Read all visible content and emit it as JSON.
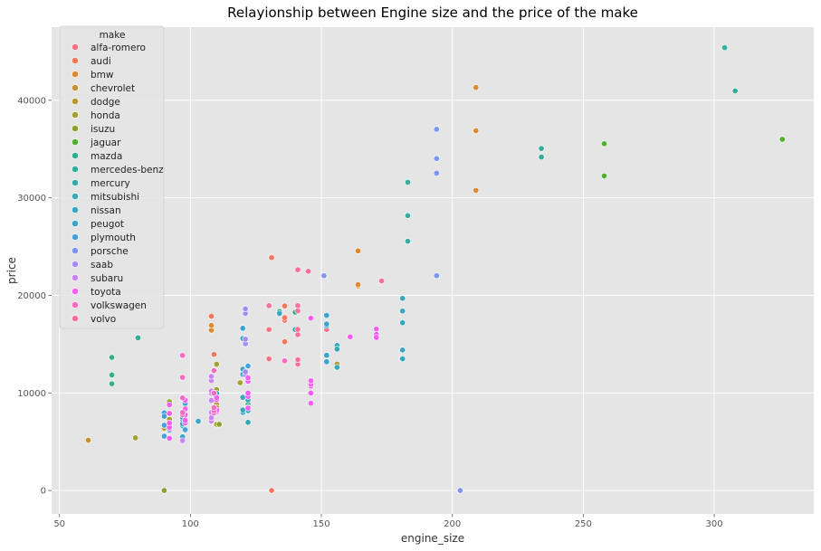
{
  "chart_data": {
    "type": "scatter",
    "title": "Relayionship between Engine size and the price of the make",
    "xlabel": "engine_size",
    "ylabel": "price",
    "xlim": [
      47,
      338
    ],
    "ylim": [
      -2400,
      47500
    ],
    "xticks": [
      50,
      100,
      150,
      200,
      250,
      300
    ],
    "yticks": [
      0,
      10000,
      20000,
      30000,
      40000
    ],
    "grid": true,
    "legend": {
      "title": "make",
      "placement": "top-left"
    },
    "series": [
      {
        "name": "alfa-romero",
        "color": "#f77189",
        "points": [
          [
            130,
            13495
          ],
          [
            130,
            16500
          ],
          [
            152,
            16500
          ]
        ]
      },
      {
        "name": "audi",
        "color": "#f3765e",
        "points": [
          [
            109,
            13950
          ],
          [
            136,
            17450
          ],
          [
            136,
            15250
          ],
          [
            136,
            17710
          ],
          [
            136,
            18920
          ],
          [
            131,
            23875
          ],
          [
            131,
            0
          ],
          [
            108,
            17859
          ]
        ]
      },
      {
        "name": "bmw",
        "color": "#dd8a30",
        "points": [
          [
            108,
            16430
          ],
          [
            108,
            16925
          ],
          [
            164,
            20970
          ],
          [
            164,
            21105
          ],
          [
            164,
            24565
          ],
          [
            209,
            30760
          ],
          [
            209,
            41315
          ],
          [
            209,
            36880
          ]
        ]
      },
      {
        "name": "chevrolet",
        "color": "#c69332",
        "points": [
          [
            61,
            5151
          ],
          [
            90,
            6295
          ],
          [
            90,
            6575
          ]
        ]
      },
      {
        "name": "dodge",
        "color": "#b39a31",
        "points": [
          [
            90,
            5572
          ],
          [
            90,
            6377
          ],
          [
            90,
            7957
          ],
          [
            98,
            6229
          ],
          [
            90,
            6692
          ],
          [
            90,
            7609
          ],
          [
            98,
            8558
          ],
          [
            122,
            8921
          ],
          [
            156,
            12964
          ]
        ]
      },
      {
        "name": "honda",
        "color": "#a1a031",
        "points": [
          [
            79,
            5399
          ],
          [
            92,
            6529
          ],
          [
            92,
            7129
          ],
          [
            92,
            7295
          ],
          [
            92,
            7895
          ],
          [
            92,
            9095
          ],
          [
            110,
            8845
          ],
          [
            110,
            10295
          ],
          [
            110,
            12945
          ],
          [
            110,
            10345
          ],
          [
            110,
            6785
          ],
          [
            110,
            8495
          ],
          [
            119,
            11048
          ]
        ]
      },
      {
        "name": "isuzu",
        "color": "#8ca131",
        "points": [
          [
            90,
            0
          ],
          [
            111,
            6785
          ]
        ]
      },
      {
        "name": "jaguar",
        "color": "#50b131",
        "points": [
          [
            258,
            32250
          ],
          [
            258,
            35550
          ],
          [
            326,
            36000
          ]
        ]
      },
      {
        "name": "mazda",
        "color": "#34ae8d",
        "points": [
          [
            70,
            10945
          ],
          [
            70,
            11845
          ],
          [
            70,
            13645
          ],
          [
            80,
            15645
          ],
          [
            122,
            8845
          ],
          [
            122,
            8495
          ],
          [
            140,
            18280
          ],
          [
            134,
            18344
          ]
        ]
      },
      {
        "name": "mercedes-benz",
        "color": "#36ad9e",
        "points": [
          [
            183,
            25552
          ],
          [
            183,
            28248
          ],
          [
            183,
            28176
          ],
          [
            183,
            31600
          ],
          [
            234,
            34184
          ],
          [
            234,
            35056
          ],
          [
            308,
            40960
          ],
          [
            304,
            45400
          ]
        ]
      },
      {
        "name": "mercury",
        "color": "#37abaa",
        "points": [
          [
            140,
            16503
          ]
        ]
      },
      {
        "name": "mitsubishi",
        "color": "#38a9b5",
        "points": [
          [
            92,
            5389
          ],
          [
            92,
            6189
          ],
          [
            92,
            6669
          ],
          [
            98,
            7689
          ],
          [
            110,
            9959
          ],
          [
            122,
            8499
          ],
          [
            156,
            12629
          ],
          [
            156,
            14869
          ],
          [
            156,
            14489
          ],
          [
            122,
            6989
          ],
          [
            122,
            8189
          ],
          [
            122,
            9279
          ],
          [
            122,
            9279
          ]
        ]
      },
      {
        "name": "nissan",
        "color": "#39a7c0",
        "points": [
          [
            97,
            5499
          ],
          [
            103,
            7099
          ],
          [
            97,
            6649
          ],
          [
            97,
            6849
          ],
          [
            97,
            7349
          ],
          [
            97,
            7299
          ],
          [
            97,
            7799
          ],
          [
            97,
            7499
          ],
          [
            120,
            7999
          ],
          [
            120,
            8249
          ],
          [
            181,
            13499
          ],
          [
            181,
            14399
          ],
          [
            181,
            13499
          ],
          [
            181,
            17199
          ],
          [
            181,
            19699
          ],
          [
            181,
            18399
          ],
          [
            120,
            9549
          ],
          [
            120,
            9549
          ]
        ]
      },
      {
        "name": "peugot",
        "color": "#3aa4cb",
        "points": [
          [
            120,
            11900
          ],
          [
            152,
            13200
          ],
          [
            120,
            12440
          ],
          [
            152,
            13860
          ],
          [
            120,
            15580
          ],
          [
            152,
            16900
          ],
          [
            120,
            16695
          ],
          [
            152,
            17075
          ],
          [
            120,
            16630
          ],
          [
            152,
            17950
          ],
          [
            134,
            18150
          ]
        ]
      },
      {
        "name": "plymouth",
        "color": "#47a0dd",
        "points": [
          [
            90,
            5572
          ],
          [
            90,
            7957
          ],
          [
            98,
            6229
          ],
          [
            90,
            6692
          ],
          [
            90,
            7609
          ],
          [
            98,
            8921
          ],
          [
            122,
            12764
          ]
        ]
      },
      {
        "name": "porsche",
        "color": "#7f94f3",
        "points": [
          [
            194,
            22018
          ],
          [
            194,
            32528
          ],
          [
            194,
            34028
          ],
          [
            194,
            37028
          ],
          [
            203,
            0
          ],
          [
            151,
            22018
          ]
        ]
      },
      {
        "name": "saab",
        "color": "#a48cf4",
        "points": [
          [
            121,
            11850
          ],
          [
            121,
            12170
          ],
          [
            121,
            15040
          ],
          [
            121,
            15510
          ],
          [
            121,
            18150
          ],
          [
            121,
            18620
          ]
        ]
      },
      {
        "name": "subaru",
        "color": "#c983f4",
        "points": [
          [
            97,
            5118
          ],
          [
            108,
            7053
          ],
          [
            108,
            7603
          ],
          [
            108,
            7126
          ],
          [
            108,
            7775
          ],
          [
            108,
            9960
          ],
          [
            108,
            9233
          ],
          [
            108,
            11259
          ],
          [
            108,
            7463
          ],
          [
            108,
            10198
          ],
          [
            108,
            8013
          ],
          [
            108,
            11694
          ]
        ]
      },
      {
        "name": "toyota",
        "color": "#f45ef1",
        "points": [
          [
            92,
            5348
          ],
          [
            92,
            6338
          ],
          [
            92,
            6488
          ],
          [
            92,
            6918
          ],
          [
            92,
            7898
          ],
          [
            92,
            8778
          ],
          [
            98,
            6938
          ],
          [
            98,
            7198
          ],
          [
            98,
            7898
          ],
          [
            98,
            7788
          ],
          [
            98,
            7738
          ],
          [
            98,
            8358
          ],
          [
            98,
            9258
          ],
          [
            110,
            8058
          ],
          [
            110,
            8238
          ],
          [
            110,
            9298
          ],
          [
            110,
            9538
          ],
          [
            122,
            8449
          ],
          [
            122,
            9639
          ],
          [
            122,
            9989
          ],
          [
            122,
            11199
          ],
          [
            122,
            11549
          ],
          [
            146,
            17669
          ],
          [
            146,
            8948
          ],
          [
            146,
            10698
          ],
          [
            146,
            9988
          ],
          [
            146,
            10898
          ],
          [
            146,
            11248
          ],
          [
            171,
            16558
          ],
          [
            171,
            15998
          ],
          [
            171,
            15690
          ],
          [
            161,
            15750
          ]
        ]
      },
      {
        "name": "volkswagen",
        "color": "#f56bbf",
        "points": [
          [
            97,
            7775
          ],
          [
            109,
            7975
          ],
          [
            97,
            7995
          ],
          [
            109,
            8195
          ],
          [
            109,
            8495
          ],
          [
            97,
            9495
          ],
          [
            109,
            9995
          ],
          [
            97,
            11595
          ],
          [
            109,
            9980
          ],
          [
            136,
            13295
          ],
          [
            97,
            13845
          ],
          [
            109,
            12290
          ]
        ]
      },
      {
        "name": "volvo",
        "color": "#f77199",
        "points": [
          [
            141,
            12940
          ],
          [
            141,
            13415
          ],
          [
            141,
            15985
          ],
          [
            141,
            16515
          ],
          [
            141,
            18420
          ],
          [
            141,
            18950
          ],
          [
            173,
            21485
          ],
          [
            145,
            22470
          ],
          [
            141,
            22625
          ],
          [
            130,
            18950
          ]
        ]
      }
    ]
  }
}
